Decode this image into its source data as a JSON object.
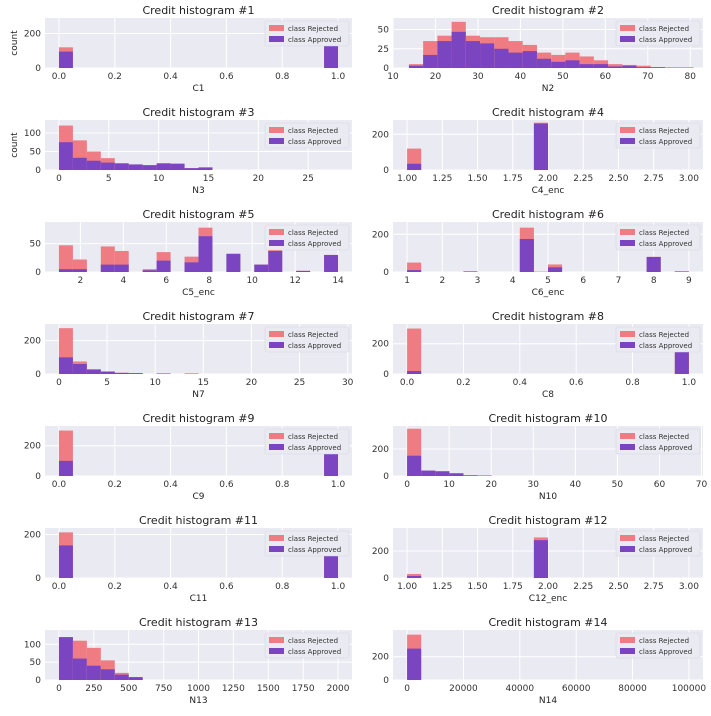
{
  "figure": {
    "legend_labels": [
      "class Rejected",
      "class Approved"
    ],
    "colors": {
      "rejected": "#ef7b83",
      "approved": "#7b45c2",
      "plot_bg": "#eaeaf2",
      "grid": "#ffffff"
    }
  },
  "chart_data": [
    {
      "type": "bar",
      "title": "Credit histogram #1",
      "xlabel": "C1",
      "ylabel": "count",
      "xlim": [
        -0.05,
        1.05
      ],
      "ylim": [
        0,
        290
      ],
      "xticks": [
        0.0,
        0.2,
        0.4,
        0.6,
        0.8,
        1.0
      ],
      "xtick_labels": [
        "0.0",
        "0.2",
        "0.4",
        "0.6",
        "0.8",
        "1.0"
      ],
      "yticks": [
        0,
        200
      ],
      "ytick_labels": [
        "0",
        "200"
      ],
      "legend": "top-right",
      "bins": [
        {
          "x0": 0.0,
          "x1": 0.05,
          "approved": 95,
          "rejected": 120
        },
        {
          "x0": 0.95,
          "x1": 1.0,
          "approved": 210,
          "rejected": 255
        }
      ]
    },
    {
      "type": "bar",
      "title": "Credit histogram #2",
      "xlabel": "N2",
      "ylabel": "",
      "xlim": [
        10,
        83
      ],
      "ylim": [
        0,
        65
      ],
      "xticks": [
        10,
        20,
        30,
        40,
        50,
        60,
        70,
        80
      ],
      "xtick_labels": [
        "10",
        "20",
        "30",
        "40",
        "50",
        "60",
        "70",
        "80"
      ],
      "yticks": [
        0,
        25,
        50
      ],
      "ytick_labels": [
        "0",
        "25",
        "50"
      ],
      "legend": "top-right",
      "bins": [
        {
          "x0": 13.75,
          "x1": 17.1,
          "approved": 3,
          "rejected": 5
        },
        {
          "x0": 17.1,
          "x1": 20.45,
          "approved": 17,
          "rejected": 35
        },
        {
          "x0": 20.45,
          "x1": 23.8,
          "approved": 35,
          "rejected": 42
        },
        {
          "x0": 23.8,
          "x1": 27.15,
          "approved": 47,
          "rejected": 60
        },
        {
          "x0": 27.15,
          "x1": 30.5,
          "approved": 35,
          "rejected": 42
        },
        {
          "x0": 30.5,
          "x1": 33.85,
          "approved": 32,
          "rejected": 40
        },
        {
          "x0": 33.85,
          "x1": 37.2,
          "approved": 25,
          "rejected": 40
        },
        {
          "x0": 37.2,
          "x1": 40.55,
          "approved": 20,
          "rejected": 35
        },
        {
          "x0": 40.55,
          "x1": 43.9,
          "approved": 22,
          "rejected": 30
        },
        {
          "x0": 43.9,
          "x1": 47.25,
          "approved": 12,
          "rejected": 20
        },
        {
          "x0": 47.25,
          "x1": 50.6,
          "approved": 8,
          "rejected": 17
        },
        {
          "x0": 50.6,
          "x1": 53.95,
          "approved": 10,
          "rejected": 20
        },
        {
          "x0": 53.95,
          "x1": 57.3,
          "approved": 5,
          "rejected": 15
        },
        {
          "x0": 57.3,
          "x1": 60.65,
          "approved": 5,
          "rejected": 10
        },
        {
          "x0": 60.65,
          "x1": 64.0,
          "approved": 2,
          "rejected": 5
        },
        {
          "x0": 64.0,
          "x1": 67.35,
          "approved": 3,
          "rejected": 4
        },
        {
          "x0": 67.35,
          "x1": 70.7,
          "approved": 1,
          "rejected": 3
        },
        {
          "x0": 70.7,
          "x1": 74.05,
          "approved": 1,
          "rejected": 1
        },
        {
          "x0": 74.05,
          "x1": 77.4,
          "approved": 0,
          "rejected": 1
        },
        {
          "x0": 77.4,
          "x1": 80.75,
          "approved": 0,
          "rejected": 1
        }
      ]
    },
    {
      "type": "bar",
      "title": "Credit histogram #3",
      "xlabel": "N3",
      "ylabel": "count",
      "xlim": [
        -1.4,
        29.4
      ],
      "ylim": [
        0,
        135
      ],
      "xticks": [
        0,
        5,
        10,
        15,
        20,
        25
      ],
      "xtick_labels": [
        "0",
        "5",
        "10",
        "15",
        "20",
        "25"
      ],
      "yticks": [
        0,
        50,
        100
      ],
      "ytick_labels": [
        "0",
        "50",
        "100"
      ],
      "legend": "top-right",
      "bins": [
        {
          "x0": 0.0,
          "x1": 1.4,
          "approved": 75,
          "rejected": 120
        },
        {
          "x0": 1.4,
          "x1": 2.8,
          "approved": 33,
          "rejected": 80
        },
        {
          "x0": 2.8,
          "x1": 4.2,
          "approved": 25,
          "rejected": 50
        },
        {
          "x0": 4.2,
          "x1": 5.6,
          "approved": 20,
          "rejected": 32
        },
        {
          "x0": 5.6,
          "x1": 7.0,
          "approved": 18,
          "rejected": 18
        },
        {
          "x0": 7.0,
          "x1": 8.4,
          "approved": 15,
          "rejected": 15
        },
        {
          "x0": 8.4,
          "x1": 9.8,
          "approved": 13,
          "rejected": 13
        },
        {
          "x0": 9.8,
          "x1": 11.2,
          "approved": 18,
          "rejected": 18
        },
        {
          "x0": 11.2,
          "x1": 12.6,
          "approved": 17,
          "rejected": 17
        },
        {
          "x0": 12.6,
          "x1": 14.0,
          "approved": 5,
          "rejected": 5
        },
        {
          "x0": 14.0,
          "x1": 15.4,
          "approved": 7,
          "rejected": 7
        }
      ]
    },
    {
      "type": "bar",
      "title": "Credit histogram #4",
      "xlabel": "C4_enc",
      "ylabel": "",
      "xlim": [
        0.9,
        3.1
      ],
      "ylim": [
        0,
        280
      ],
      "xticks": [
        1.0,
        1.25,
        1.5,
        1.75,
        2.0,
        2.25,
        2.5,
        2.75,
        3.0
      ],
      "xtick_labels": [
        "1.00",
        "1.25",
        "1.50",
        "1.75",
        "2.00",
        "2.25",
        "2.50",
        "2.75",
        "3.00"
      ],
      "yticks": [
        0,
        200
      ],
      "ytick_labels": [
        "0",
        "200"
      ],
      "legend": "top-right",
      "bins": [
        {
          "x0": 1.0,
          "x1": 1.1,
          "approved": 35,
          "rejected": 120
        },
        {
          "x0": 1.9,
          "x1": 2.0,
          "approved": 260,
          "rejected": 265
        }
      ]
    },
    {
      "type": "bar",
      "title": "Credit histogram #5",
      "xlabel": "C5_enc",
      "ylabel": "",
      "xlim": [
        0.35,
        14.65
      ],
      "ylim": [
        0,
        88
      ],
      "xticks": [
        2,
        4,
        6,
        8,
        10,
        12,
        14
      ],
      "xtick_labels": [
        "2",
        "4",
        "6",
        "8",
        "10",
        "12",
        "14"
      ],
      "yticks": [
        0,
        50
      ],
      "ytick_labels": [
        "0",
        "50"
      ],
      "legend": "top-right",
      "bins": [
        {
          "x0": 1.0,
          "x1": 1.65,
          "approved": 5,
          "rejected": 47
        },
        {
          "x0": 1.65,
          "x1": 2.3,
          "approved": 5,
          "rejected": 22
        },
        {
          "x0": 2.95,
          "x1": 3.6,
          "approved": 13,
          "rejected": 45
        },
        {
          "x0": 3.6,
          "x1": 4.25,
          "approved": 13,
          "rejected": 37
        },
        {
          "x0": 4.9,
          "x1": 5.55,
          "approved": 3,
          "rejected": 5
        },
        {
          "x0": 5.55,
          "x1": 6.2,
          "approved": 20,
          "rejected": 35
        },
        {
          "x0": 6.85,
          "x1": 7.5,
          "approved": 17,
          "rejected": 27
        },
        {
          "x0": 7.5,
          "x1": 8.15,
          "approved": 63,
          "rejected": 78
        },
        {
          "x0": 8.8,
          "x1": 9.45,
          "approved": 32,
          "rejected": 32
        },
        {
          "x0": 10.1,
          "x1": 10.75,
          "approved": 13,
          "rejected": 13
        },
        {
          "x0": 10.75,
          "x1": 11.4,
          "approved": 37,
          "rejected": 50
        },
        {
          "x0": 12.05,
          "x1": 12.7,
          "approved": 2,
          "rejected": 2
        },
        {
          "x0": 13.35,
          "x1": 14.0,
          "approved": 30,
          "rejected": 30
        }
      ]
    },
    {
      "type": "bar",
      "title": "Credit histogram #6",
      "xlabel": "C6_enc",
      "ylabel": "",
      "xlim": [
        0.6,
        9.4
      ],
      "ylim": [
        0,
        265
      ],
      "xticks": [
        1,
        2,
        3,
        4,
        5,
        6,
        7,
        8,
        9
      ],
      "xtick_labels": [
        "1",
        "2",
        "3",
        "4",
        "5",
        "6",
        "7",
        "8",
        "9"
      ],
      "yticks": [
        0,
        200
      ],
      "ytick_labels": [
        "0",
        "200"
      ],
      "legend": "top-right",
      "bins": [
        {
          "x0": 1.0,
          "x1": 1.4,
          "approved": 10,
          "rejected": 50
        },
        {
          "x0": 2.6,
          "x1": 3.0,
          "approved": 3,
          "rejected": 3
        },
        {
          "x0": 4.2,
          "x1": 4.6,
          "approved": 175,
          "rejected": 235
        },
        {
          "x0": 4.6,
          "x1": 5.0,
          "approved": 0,
          "rejected": 2
        },
        {
          "x0": 5.0,
          "x1": 5.4,
          "approved": 25,
          "rejected": 40
        },
        {
          "x0": 7.8,
          "x1": 8.2,
          "approved": 80,
          "rejected": 80
        },
        {
          "x0": 8.6,
          "x1": 9.0,
          "approved": 3,
          "rejected": 3
        }
      ]
    },
    {
      "type": "bar",
      "title": "Credit histogram #7",
      "xlabel": "N7",
      "ylabel": "",
      "xlim": [
        -1.45,
        30.45
      ],
      "ylim": [
        0,
        300
      ],
      "xticks": [
        0,
        5,
        10,
        15,
        20,
        25,
        30
      ],
      "xtick_labels": [
        "0",
        "5",
        "10",
        "15",
        "20",
        "25",
        "30"
      ],
      "yticks": [
        0,
        200
      ],
      "ytick_labels": [
        "0",
        "200"
      ],
      "legend": "top-right",
      "bins": [
        {
          "x0": 0.0,
          "x1": 1.45,
          "approved": 100,
          "rejected": 275
        },
        {
          "x0": 1.45,
          "x1": 2.9,
          "approved": 60,
          "rejected": 75
        },
        {
          "x0": 2.9,
          "x1": 4.35,
          "approved": 25,
          "rejected": 30
        },
        {
          "x0": 4.35,
          "x1": 5.8,
          "approved": 15,
          "rejected": 15
        },
        {
          "x0": 5.8,
          "x1": 7.25,
          "approved": 7,
          "rejected": 7
        },
        {
          "x0": 7.25,
          "x1": 8.7,
          "approved": 5,
          "rejected": 5
        },
        {
          "x0": 10.15,
          "x1": 11.6,
          "approved": 3,
          "rejected": 3
        },
        {
          "x0": 13.05,
          "x1": 14.5,
          "approved": 2,
          "rejected": 2
        }
      ]
    },
    {
      "type": "bar",
      "title": "Credit histogram #8",
      "xlabel": "C8",
      "ylabel": "",
      "xlim": [
        -0.05,
        1.05
      ],
      "ylim": [
        0,
        330
      ],
      "xticks": [
        0.0,
        0.2,
        0.4,
        0.6,
        0.8,
        1.0
      ],
      "xtick_labels": [
        "0.0",
        "0.2",
        "0.4",
        "0.6",
        "0.8",
        "1.0"
      ],
      "yticks": [
        0,
        200
      ],
      "ytick_labels": [
        "0",
        "200"
      ],
      "legend": "top-right",
      "bins": [
        {
          "x0": 0.0,
          "x1": 0.05,
          "approved": 20,
          "rejected": 300
        },
        {
          "x0": 0.95,
          "x1": 1.0,
          "approved": 275,
          "rejected": 300
        }
      ]
    },
    {
      "type": "bar",
      "title": "Credit histogram #9",
      "xlabel": "C9",
      "ylabel": "",
      "xlim": [
        -0.05,
        1.05
      ],
      "ylim": [
        0,
        330
      ],
      "xticks": [
        0.0,
        0.2,
        0.4,
        0.6,
        0.8,
        1.0
      ],
      "xtick_labels": [
        "0.0",
        "0.2",
        "0.4",
        "0.6",
        "0.8",
        "1.0"
      ],
      "yticks": [
        0,
        200
      ],
      "ytick_labels": [
        "0",
        "200"
      ],
      "legend": "top-right",
      "bins": [
        {
          "x0": 0.0,
          "x1": 0.05,
          "approved": 100,
          "rejected": 300
        },
        {
          "x0": 0.95,
          "x1": 1.0,
          "approved": 200,
          "rejected": 240
        }
      ]
    },
    {
      "type": "bar",
      "title": "Credit histogram #10",
      "xlabel": "N10",
      "ylabel": "",
      "xlim": [
        -3.35,
        70.35
      ],
      "ylim": [
        0,
        370
      ],
      "xticks": [
        0,
        10,
        20,
        30,
        40,
        50,
        60,
        70
      ],
      "xtick_labels": [
        "0",
        "10",
        "20",
        "30",
        "40",
        "50",
        "60",
        "70"
      ],
      "yticks": [
        0,
        200
      ],
      "ytick_labels": [
        "0",
        "200"
      ],
      "legend": "top-right",
      "bins": [
        {
          "x0": 0.0,
          "x1": 3.35,
          "approved": 150,
          "rejected": 350
        },
        {
          "x0": 3.35,
          "x1": 6.7,
          "approved": 40,
          "rejected": 40
        },
        {
          "x0": 6.7,
          "x1": 10.05,
          "approved": 35,
          "rejected": 35
        },
        {
          "x0": 10.05,
          "x1": 13.4,
          "approved": 20,
          "rejected": 20
        },
        {
          "x0": 13.4,
          "x1": 16.75,
          "approved": 5,
          "rejected": 5
        },
        {
          "x0": 16.75,
          "x1": 20.1,
          "approved": 3,
          "rejected": 3
        }
      ]
    },
    {
      "type": "bar",
      "title": "Credit histogram #11",
      "xlabel": "C11",
      "ylabel": "",
      "xlim": [
        -0.05,
        1.05
      ],
      "ylim": [
        0,
        230
      ],
      "xticks": [
        0.0,
        0.2,
        0.4,
        0.6,
        0.8,
        1.0
      ],
      "xtick_labels": [
        "0.0",
        "0.2",
        "0.4",
        "0.6",
        "0.8",
        "1.0"
      ],
      "yticks": [
        0,
        200
      ],
      "ytick_labels": [
        "0",
        "200"
      ],
      "legend": "top-right",
      "bins": [
        {
          "x0": 0.0,
          "x1": 0.05,
          "approved": 150,
          "rejected": 210
        },
        {
          "x0": 0.95,
          "x1": 1.0,
          "approved": 160,
          "rejected": 170
        }
      ]
    },
    {
      "type": "bar",
      "title": "Credit histogram #12",
      "xlabel": "C12_enc",
      "ylabel": "",
      "xlim": [
        0.9,
        3.1
      ],
      "ylim": [
        0,
        370
      ],
      "xticks": [
        1.0,
        1.25,
        1.5,
        1.75,
        2.0,
        2.25,
        2.5,
        2.75,
        3.0
      ],
      "xtick_labels": [
        "1.00",
        "1.25",
        "1.50",
        "1.75",
        "2.00",
        "2.25",
        "2.50",
        "2.75",
        "3.00"
      ],
      "yticks": [
        0,
        200
      ],
      "ytick_labels": [
        "0",
        "200"
      ],
      "legend": "top-right",
      "bins": [
        {
          "x0": 1.0,
          "x1": 1.1,
          "approved": 15,
          "rejected": 30
        },
        {
          "x0": 1.9,
          "x1": 2.0,
          "approved": 280,
          "rejected": 300
        }
      ]
    },
    {
      "type": "bar",
      "title": "Credit histogram #13",
      "xlabel": "N13",
      "ylabel": "",
      "xlim": [
        -100,
        2100
      ],
      "ylim": [
        0,
        140
      ],
      "xticks": [
        0,
        250,
        500,
        750,
        1000,
        1250,
        1500,
        1750,
        2000
      ],
      "xtick_labels": [
        "0",
        "250",
        "500",
        "750",
        "1000",
        "1250",
        "1500",
        "1750",
        "2000"
      ],
      "yticks": [
        0,
        50,
        100
      ],
      "ytick_labels": [
        "0",
        "50",
        "100"
      ],
      "legend": "top-right",
      "bins": [
        {
          "x0": 0,
          "x1": 100,
          "approved": 120,
          "rejected": 120
        },
        {
          "x0": 100,
          "x1": 200,
          "approved": 60,
          "rejected": 110
        },
        {
          "x0": 200,
          "x1": 300,
          "approved": 40,
          "rejected": 90
        },
        {
          "x0": 300,
          "x1": 400,
          "approved": 30,
          "rejected": 55
        },
        {
          "x0": 400,
          "x1": 500,
          "approved": 15,
          "rejected": 20
        },
        {
          "x0": 500,
          "x1": 600,
          "approved": 8,
          "rejected": 8
        }
      ]
    },
    {
      "type": "bar",
      "title": "Credit histogram #14",
      "xlabel": "N14",
      "ylabel": "",
      "xlim": [
        -5000,
        105000
      ],
      "ylim": [
        0,
        430
      ],
      "xticks": [
        0,
        20000,
        40000,
        60000,
        80000,
        100000
      ],
      "xtick_labels": [
        "0",
        "20000",
        "40000",
        "60000",
        "80000",
        "100000"
      ],
      "yticks": [
        0,
        200
      ],
      "ytick_labels": [
        "0",
        "200"
      ],
      "legend": "top-right",
      "bins": [
        {
          "x0": 0,
          "x1": 5000,
          "approved": 270,
          "rejected": 390
        }
      ]
    }
  ]
}
